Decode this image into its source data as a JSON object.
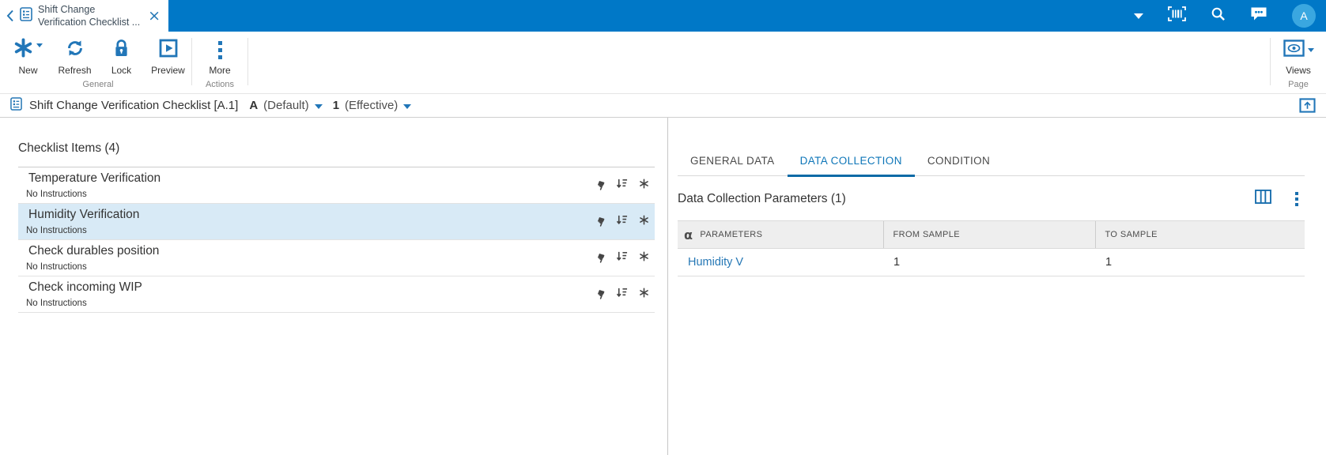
{
  "topbar": {
    "tab": {
      "title_line1": "Shift Change",
      "title_line2": "Verification Checklist ..."
    },
    "avatar_letter": "A"
  },
  "ribbon": {
    "buttons": {
      "new": "New",
      "refresh": "Refresh",
      "lock": "Lock",
      "preview": "Preview",
      "more": "More",
      "views": "Views"
    },
    "groups": {
      "general": "General",
      "actions": "Actions",
      "page": "Page"
    }
  },
  "breadcrumb": {
    "title": "Shift Change Verification Checklist [A.1]",
    "revision_letter": "A",
    "revision_label": "(Default)",
    "version_number": "1",
    "version_label": "(Effective)"
  },
  "checklist": {
    "heading": "Checklist Items (4)",
    "items": [
      {
        "title": "Temperature Verification",
        "subtitle": "No Instructions",
        "selected": false
      },
      {
        "title": "Humidity Verification",
        "subtitle": "No Instructions",
        "selected": true
      },
      {
        "title": "Check durables position",
        "subtitle": "No Instructions",
        "selected": false
      },
      {
        "title": "Check incoming WIP",
        "subtitle": "No Instructions",
        "selected": false
      }
    ]
  },
  "details": {
    "tabs": [
      {
        "label": "GENERAL DATA",
        "active": false
      },
      {
        "label": "DATA COLLECTION",
        "active": true
      },
      {
        "label": "CONDITION",
        "active": false
      }
    ],
    "heading": "Data Collection Parameters (1)",
    "table": {
      "columns": [
        "PARAMETERS",
        "FROM SAMPLE",
        "TO SAMPLE"
      ],
      "rows": [
        {
          "parameter": "Humidity V",
          "from_sample": "1",
          "to_sample": "1"
        }
      ]
    }
  },
  "icons": {
    "close": "×",
    "hand": "☛",
    "alpha": "α"
  },
  "colors": {
    "topbar_blue": "#0078c7",
    "icon_blue": "#2176b8",
    "active_tab_blue": "#0e76b8",
    "selected_row_bg": "#d8eaf6",
    "avatar_blue": "#3aa7e0",
    "link_blue": "#2577b5",
    "table_header_bg": "#eeeeee"
  }
}
